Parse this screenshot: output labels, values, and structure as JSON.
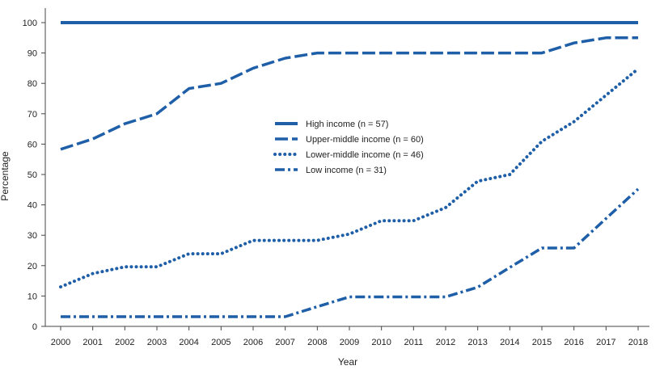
{
  "chart_data": {
    "type": "line",
    "title": "",
    "xlabel": "Year",
    "ylabel": "Percentage",
    "x": [
      "2000",
      "2001",
      "2002",
      "2003",
      "2004",
      "2005",
      "2006",
      "2007",
      "2008",
      "2009",
      "2010",
      "2011",
      "2012",
      "2013",
      "2014",
      "2015",
      "2016",
      "2017",
      "2018"
    ],
    "ylim": [
      0,
      100
    ],
    "yticks": [
      "0",
      "10",
      "20",
      "30",
      "40",
      "50",
      "60",
      "70",
      "80",
      "90",
      "100"
    ],
    "grid": false,
    "legend_position": "center",
    "color": "#1f5fa8",
    "series": [
      {
        "name": "High income (n = 57)",
        "style": "solid",
        "values": [
          100,
          100,
          100,
          100,
          100,
          100,
          100,
          100,
          100,
          100,
          100,
          100,
          100,
          100,
          100,
          100,
          100,
          100,
          100
        ]
      },
      {
        "name": "Upper-middle income (n = 60)",
        "style": "dashed",
        "values": [
          58.3,
          61.7,
          66.7,
          70,
          78.3,
          80,
          85,
          88.3,
          90,
          90,
          90,
          90,
          90,
          90,
          90,
          90,
          93.3,
          95,
          95
        ]
      },
      {
        "name": "Lower-middle income (n = 46)",
        "style": "dotted",
        "values": [
          13,
          17.4,
          19.6,
          19.6,
          23.9,
          23.9,
          28.3,
          28.3,
          28.3,
          30.4,
          34.8,
          34.8,
          39.1,
          47.8,
          50,
          60.9,
          67.4,
          76.1,
          84.8
        ]
      },
      {
        "name": "Low income (n = 31)",
        "style": "dashdot",
        "values": [
          3.2,
          3.2,
          3.2,
          3.2,
          3.2,
          3.2,
          3.2,
          3.2,
          6.5,
          9.7,
          9.7,
          9.7,
          9.7,
          12.9,
          19.4,
          25.8,
          25.8,
          35.5,
          45.2
        ]
      }
    ]
  }
}
